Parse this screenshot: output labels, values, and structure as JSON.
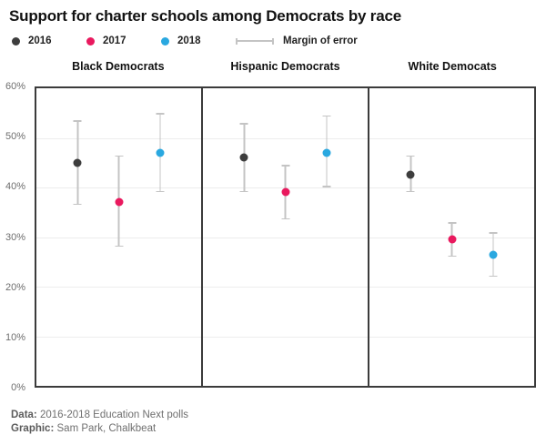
{
  "title": "Support for charter schools among Democrats by race",
  "legend": {
    "series": [
      {
        "label": "2016",
        "color": "#3d3d3d"
      },
      {
        "label": "2017",
        "color": "#e9195e"
      },
      {
        "label": "2018",
        "color": "#2aa8e0"
      }
    ],
    "moe": {
      "label": "Margin of error",
      "color": "#c4c4c4"
    }
  },
  "chart_data": {
    "type": "scatter",
    "title": "Support for charter schools among Democrats by race",
    "legend_position": "top",
    "grid": true,
    "ylim": [
      0,
      60
    ],
    "ytick_step": 10,
    "ytick_labels": [
      "0%",
      "10%",
      "20%",
      "30%",
      "40%",
      "50%",
      "60%"
    ],
    "series_names": [
      "2016",
      "2017",
      "2018"
    ],
    "panels": [
      {
        "label": "Black Democrats",
        "points": [
          {
            "series": "2016",
            "value": 45,
            "moe_low": 36.5,
            "moe_high": 53.5
          },
          {
            "series": "2017",
            "value": 37,
            "moe_low": 28,
            "moe_high": 46.5
          },
          {
            "series": "2018",
            "value": 47,
            "moe_low": 39,
            "moe_high": 55
          }
        ]
      },
      {
        "label": "Hispanic Democrats",
        "points": [
          {
            "series": "2016",
            "value": 46,
            "moe_low": 39,
            "moe_high": 53
          },
          {
            "series": "2017",
            "value": 39,
            "moe_low": 33.5,
            "moe_high": 44.5
          },
          {
            "series": "2018",
            "value": 47,
            "moe_low": 40,
            "moe_high": 54.5
          }
        ]
      },
      {
        "label": "White Democats",
        "points": [
          {
            "series": "2016",
            "value": 42.5,
            "moe_low": 39,
            "moe_high": 46.5
          },
          {
            "series": "2017",
            "value": 29.5,
            "moe_low": 26,
            "moe_high": 33
          },
          {
            "series": "2018",
            "value": 26.5,
            "moe_low": 22,
            "moe_high": 31
          }
        ]
      }
    ]
  },
  "footer": {
    "data_label": "Data:",
    "data_value": "2016-2018 Education Next polls",
    "graphic_label": "Graphic:",
    "graphic_value": "Sam Park, Chalkbeat"
  }
}
